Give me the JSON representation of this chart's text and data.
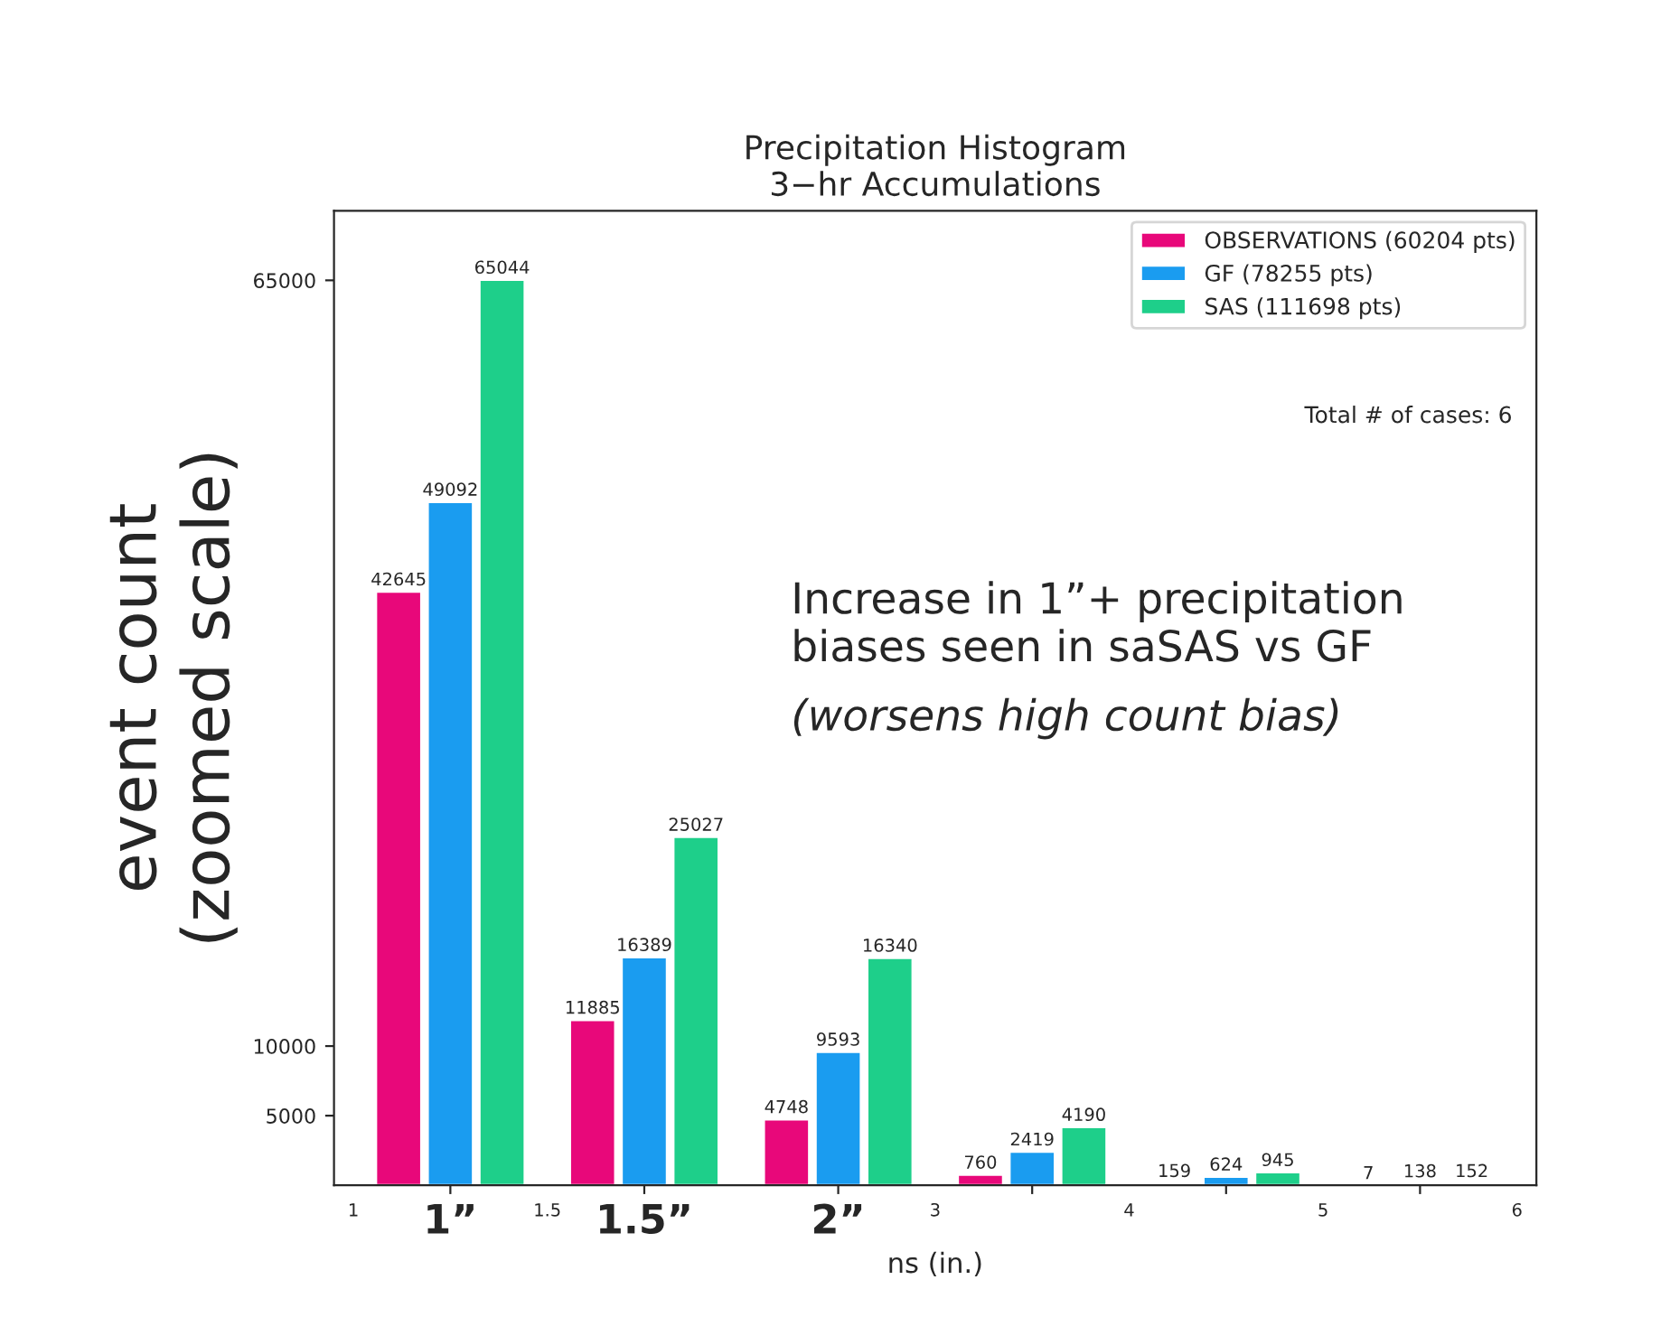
{
  "chart_data": {
    "type": "bar",
    "title": "Precipitation Histogram\n3−hr Accumulations",
    "ylabel": "event count\n(zoomed scale)",
    "xlabel": "ns (in.)",
    "categories": [
      "1”",
      "1.5”",
      "2”",
      null,
      null,
      null
    ],
    "series": [
      {
        "name": "OBSERVATIONS (60204 pts)",
        "color": "#e8087a",
        "values": [
          42645,
          11885,
          4748,
          760,
          159,
          7
        ]
      },
      {
        "name": "GF (78255 pts)",
        "color": "#1a9cf0",
        "values": [
          49092,
          16389,
          9593,
          2419,
          624,
          138
        ]
      },
      {
        "name": "SAS (111698 pts)",
        "color": "#1ecf8a",
        "values": [
          65044,
          25027,
          16340,
          4190,
          945,
          152
        ]
      }
    ],
    "ylim": [
      0,
      70000
    ],
    "yticks": [
      5000,
      10000,
      65000
    ],
    "data_labels": true,
    "legend": "top right",
    "grid": false,
    "annotations": [
      "Total # of cases: 6",
      "Increase in 1”+ precipitation\nbiases seen in saSAS vs GF",
      "(worsens high count bias)",
      "1",
      "1.5",
      "3",
      "4",
      "5",
      "6"
    ]
  }
}
